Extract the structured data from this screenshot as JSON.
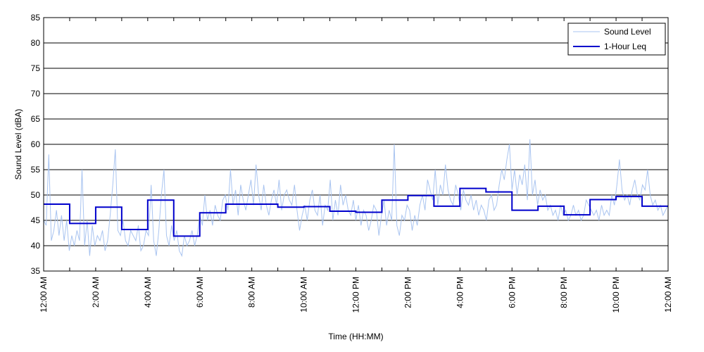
{
  "chart_data": {
    "type": "line",
    "xlabel": "Time (HH:MM)",
    "ylabel": "Sound Level (dBA)",
    "ylim": [
      35,
      85
    ],
    "xlim_hours": [
      0,
      24
    ],
    "y_ticks": [
      35,
      40,
      45,
      50,
      55,
      60,
      65,
      70,
      75,
      80,
      85
    ],
    "x_ticks": [
      {
        "hour": 0,
        "label": "12:00 AM"
      },
      {
        "hour": 2,
        "label": "2:00 AM"
      },
      {
        "hour": 4,
        "label": "4:00 AM"
      },
      {
        "hour": 6,
        "label": "6:00 AM"
      },
      {
        "hour": 8,
        "label": "8:00 AM"
      },
      {
        "hour": 10,
        "label": "10:00 AM"
      },
      {
        "hour": 12,
        "label": "12:00 PM"
      },
      {
        "hour": 14,
        "label": "2:00 PM"
      },
      {
        "hour": 16,
        "label": "4:00 PM"
      },
      {
        "hour": 18,
        "label": "6:00 PM"
      },
      {
        "hour": 20,
        "label": "8:00 PM"
      },
      {
        "hour": 22,
        "label": "10:00 PM"
      },
      {
        "hour": 24,
        "label": "12:00 AM"
      }
    ],
    "grid": "horizontal",
    "legend_position": "top-right",
    "series": [
      {
        "name": "Sound Level",
        "color": "#a9c4f0",
        "style": "thin-line",
        "values": [
          45,
          44,
          58,
          41,
          43,
          47,
          42,
          46,
          41,
          45,
          39,
          42,
          40,
          43,
          41,
          55,
          40,
          45,
          38,
          44,
          40,
          42,
          41,
          43,
          39,
          41,
          46,
          52,
          59,
          43,
          42,
          45,
          41,
          40,
          43,
          42,
          41,
          44,
          39,
          40,
          43,
          42,
          52,
          41,
          38,
          43,
          50,
          55,
          42,
          40,
          44,
          41,
          43,
          39,
          38,
          42,
          40,
          41,
          43,
          40,
          42,
          46,
          44,
          50,
          45,
          47,
          44,
          48,
          46,
          45,
          49,
          50,
          47,
          55,
          48,
          51,
          46,
          52,
          49,
          47,
          50,
          53,
          48,
          56,
          50,
          47,
          52,
          48,
          46,
          49,
          51,
          48,
          53,
          47,
          50,
          51,
          49,
          48,
          52,
          47,
          43,
          46,
          48,
          45,
          49,
          51,
          47,
          46,
          50,
          44,
          48,
          47,
          53,
          45,
          49,
          46,
          52,
          48,
          50,
          47,
          46,
          49,
          45,
          48,
          44,
          47,
          46,
          43,
          45,
          48,
          47,
          42,
          46,
          49,
          44,
          47,
          45,
          60,
          44,
          42,
          46,
          45,
          48,
          47,
          43,
          46,
          44,
          48,
          50,
          47,
          53,
          51,
          49,
          55,
          48,
          52,
          50,
          56,
          51,
          49,
          48,
          52,
          50,
          47,
          51,
          49,
          48,
          50,
          47,
          49,
          46,
          48,
          47,
          45,
          49,
          50,
          47,
          48,
          52,
          55,
          53,
          57,
          60,
          51,
          55,
          50,
          54,
          52,
          56,
          49,
          61,
          50,
          53,
          48,
          51,
          49,
          50,
          47,
          48,
          46,
          47,
          45,
          48,
          46,
          47,
          45,
          46,
          48,
          46,
          47,
          45,
          46,
          49,
          48,
          47,
          46,
          47,
          45,
          48,
          46,
          47,
          46,
          50,
          48,
          52,
          57,
          51,
          49,
          50,
          48,
          51,
          53,
          50,
          49,
          52,
          51,
          55,
          50,
          48,
          49,
          47,
          48,
          46,
          47,
          48
        ]
      },
      {
        "name": "1-Hour Leq",
        "color": "#0000cc",
        "style": "step",
        "values": [
          48.2,
          44.4,
          47.6,
          43.2,
          49.0,
          41.9,
          46.5,
          48.2,
          48.2,
          47.6,
          47.7,
          46.8,
          46.6,
          49.0,
          49.9,
          47.8,
          51.3,
          50.6,
          47.0,
          47.8,
          46.1,
          49.1,
          49.7,
          47.8
        ]
      }
    ]
  }
}
